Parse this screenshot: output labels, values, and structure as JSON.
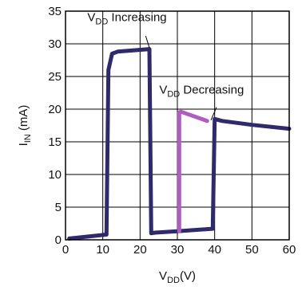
{
  "chart_data": {
    "type": "line",
    "xlabel_main": "V",
    "xlabel_sub": "DD",
    "xlabel_rest": "(V)",
    "ylabel_main": "I",
    "ylabel_sub": "IN",
    "ylabel_rest": " (mA)",
    "xlim": [
      0,
      60
    ],
    "ylim": [
      0,
      35
    ],
    "x_ticks": [
      0,
      10,
      20,
      30,
      40,
      50,
      60
    ],
    "y_ticks": [
      0,
      5,
      10,
      15,
      20,
      25,
      30,
      35
    ],
    "grid": true,
    "series": [
      {
        "name": "VDD Increasing",
        "color": "#2e2a6b",
        "x": [
          1,
          11,
          11.5,
          12.5,
          14,
          22.5,
          23,
          24,
          30,
          39.5,
          40,
          42,
          50,
          60
        ],
        "y": [
          0.2,
          0.8,
          26,
          28.5,
          28.8,
          29.2,
          1,
          1.1,
          1.3,
          1.7,
          18.5,
          18.2,
          17.6,
          17
        ]
      },
      {
        "name": "VDD Decreasing",
        "color": "#b05cc0",
        "x": [
          30.5,
          30.5,
          31,
          38
        ],
        "y": [
          1.3,
          19.5,
          19.6,
          18.2
        ]
      }
    ],
    "annotations": [
      {
        "main": "V",
        "sub": "DD",
        "rest": " Increasing",
        "x": 16.5,
        "y": 33.5,
        "leader_from": [
          21.5,
          31.2
        ],
        "leader_to": [
          22.5,
          29.4
        ]
      },
      {
        "main": "V",
        "sub": "DD",
        "rest": " Decreasing",
        "x": 36.5,
        "y": 22.4,
        "leader_from": [
          40.5,
          20.3
        ],
        "leader_to": [
          39,
          18.3
        ]
      }
    ]
  }
}
